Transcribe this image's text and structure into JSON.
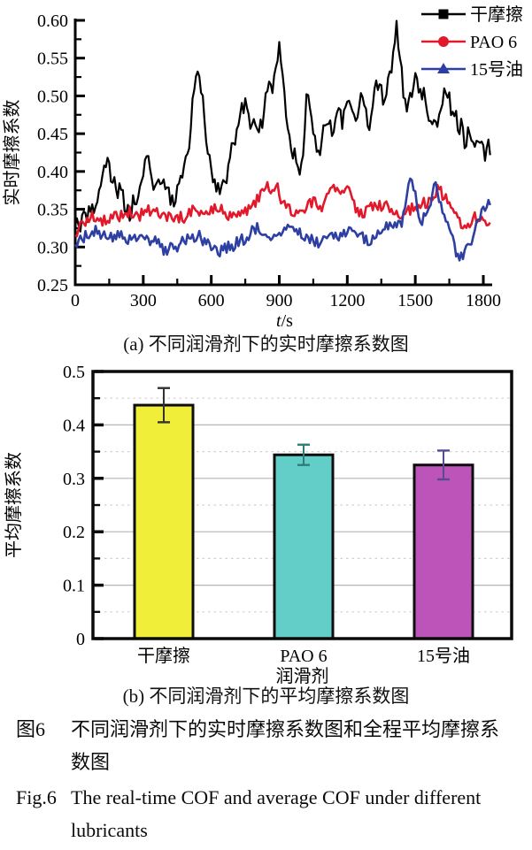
{
  "figure": {
    "caption_zh_label": "图6",
    "caption_zh_text": "不同润滑剂下的实时摩擦系数图和全程平均摩擦系数图",
    "caption_en_label": "Fig.6",
    "caption_en_text": "The real-time COF and average COF under different lubricants"
  },
  "chart_data": [
    {
      "type": "line",
      "title": "(a) 不同润滑剂下的实时摩擦系数图",
      "xlabel": "t/s",
      "ylabel": "实时摩擦系数",
      "xlim": [
        0,
        1800
      ],
      "xmax_data": 1830,
      "ylim": [
        0.25,
        0.6
      ],
      "xticks_major": [
        0,
        300,
        600,
        900,
        1200,
        1500,
        1800
      ],
      "xtick_minor_step": 150,
      "yticks_major": [
        0.25,
        0.3,
        0.35,
        0.4,
        0.45,
        0.5,
        0.55,
        0.6
      ],
      "ytick_labels": [
        "0.25",
        "0.30",
        "0.35",
        "0.40",
        "0.45",
        "0.50",
        "0.55",
        "0.60"
      ],
      "ytick_minor_step": 0.025,
      "grid": false,
      "legend_position": "top-right",
      "axis_color": "#000000",
      "series": [
        {
          "name": "干摩擦",
          "color": "#000000",
          "marker": "square",
          "noise": 0.013,
          "seed": 7,
          "keypoints": [
            [
              0,
              0.335
            ],
            [
              20,
              0.322
            ],
            [
              45,
              0.34
            ],
            [
              70,
              0.345
            ],
            [
              95,
              0.36
            ],
            [
              120,
              0.4
            ],
            [
              140,
              0.415
            ],
            [
              160,
              0.39
            ],
            [
              185,
              0.37
            ],
            [
              200,
              0.385
            ],
            [
              220,
              0.355
            ],
            [
              240,
              0.345
            ],
            [
              260,
              0.36
            ],
            [
              285,
              0.375
            ],
            [
              300,
              0.4
            ],
            [
              320,
              0.415
            ],
            [
              340,
              0.385
            ],
            [
              360,
              0.38
            ],
            [
              380,
              0.395
            ],
            [
              400,
              0.375
            ],
            [
              420,
              0.365
            ],
            [
              440,
              0.36
            ],
            [
              460,
              0.385
            ],
            [
              480,
              0.4
            ],
            [
              500,
              0.43
            ],
            [
              520,
              0.5
            ],
            [
              540,
              0.545
            ],
            [
              555,
              0.515
            ],
            [
              570,
              0.46
            ],
            [
              585,
              0.43
            ],
            [
              600,
              0.4
            ],
            [
              620,
              0.385
            ],
            [
              640,
              0.38
            ],
            [
              660,
              0.375
            ],
            [
              680,
              0.41
            ],
            [
              700,
              0.44
            ],
            [
              720,
              0.46
            ],
            [
              740,
              0.485
            ],
            [
              755,
              0.49
            ],
            [
              770,
              0.46
            ],
            [
              785,
              0.475
            ],
            [
              800,
              0.45
            ],
            [
              815,
              0.46
            ],
            [
              830,
              0.47
            ],
            [
              845,
              0.52
            ],
            [
              860,
              0.5
            ],
            [
              875,
              0.52
            ],
            [
              890,
              0.55
            ],
            [
              900,
              0.56
            ],
            [
              915,
              0.53
            ],
            [
              930,
              0.47
            ],
            [
              945,
              0.44
            ],
            [
              960,
              0.43
            ],
            [
              975,
              0.41
            ],
            [
              990,
              0.4
            ],
            [
              1005,
              0.43
            ],
            [
              1020,
              0.5
            ],
            [
              1035,
              0.49
            ],
            [
              1050,
              0.45
            ],
            [
              1065,
              0.43
            ],
            [
              1080,
              0.42
            ],
            [
              1100,
              0.46
            ],
            [
              1120,
              0.47
            ],
            [
              1140,
              0.45
            ],
            [
              1160,
              0.48
            ],
            [
              1180,
              0.465
            ],
            [
              1200,
              0.5
            ],
            [
              1220,
              0.48
            ],
            [
              1240,
              0.46
            ],
            [
              1260,
              0.5
            ],
            [
              1280,
              0.475
            ],
            [
              1300,
              0.46
            ],
            [
              1320,
              0.5
            ],
            [
              1340,
              0.52
            ],
            [
              1360,
              0.495
            ],
            [
              1380,
              0.52
            ],
            [
              1400,
              0.55
            ],
            [
              1415,
              0.595
            ],
            [
              1430,
              0.55
            ],
            [
              1445,
              0.515
            ],
            [
              1460,
              0.47
            ],
            [
              1475,
              0.49
            ],
            [
              1490,
              0.51
            ],
            [
              1505,
              0.525
            ],
            [
              1520,
              0.5
            ],
            [
              1535,
              0.51
            ],
            [
              1550,
              0.49
            ],
            [
              1565,
              0.47
            ],
            [
              1580,
              0.455
            ],
            [
              1600,
              0.47
            ],
            [
              1620,
              0.5
            ],
            [
              1640,
              0.51
            ],
            [
              1655,
              0.49
            ],
            [
              1670,
              0.475
            ],
            [
              1685,
              0.465
            ],
            [
              1700,
              0.46
            ],
            [
              1720,
              0.44
            ],
            [
              1740,
              0.455
            ],
            [
              1760,
              0.44
            ],
            [
              1780,
              0.432
            ],
            [
              1800,
              0.425
            ],
            [
              1830,
              0.432
            ]
          ]
        },
        {
          "name": "PAO 6",
          "color": "#e2182b",
          "marker": "circle",
          "noise": 0.008,
          "seed": 23,
          "keypoints": [
            [
              0,
              0.318
            ],
            [
              40,
              0.333
            ],
            [
              80,
              0.34
            ],
            [
              120,
              0.335
            ],
            [
              160,
              0.34
            ],
            [
              200,
              0.342
            ],
            [
              240,
              0.347
            ],
            [
              280,
              0.34
            ],
            [
              320,
              0.35
            ],
            [
              360,
              0.345
            ],
            [
              400,
              0.34
            ],
            [
              440,
              0.337
            ],
            [
              480,
              0.34
            ],
            [
              520,
              0.35
            ],
            [
              560,
              0.345
            ],
            [
              600,
              0.348
            ],
            [
              640,
              0.35
            ],
            [
              680,
              0.34
            ],
            [
              720,
              0.345
            ],
            [
              760,
              0.35
            ],
            [
              800,
              0.36
            ],
            [
              830,
              0.375
            ],
            [
              850,
              0.385
            ],
            [
              870,
              0.368
            ],
            [
              890,
              0.39
            ],
            [
              910,
              0.36
            ],
            [
              940,
              0.35
            ],
            [
              980,
              0.345
            ],
            [
              1020,
              0.355
            ],
            [
              1060,
              0.36
            ],
            [
              1090,
              0.35
            ],
            [
              1120,
              0.372
            ],
            [
              1150,
              0.38
            ],
            [
              1180,
              0.374
            ],
            [
              1210,
              0.372
            ],
            [
              1240,
              0.35
            ],
            [
              1280,
              0.345
            ],
            [
              1320,
              0.358
            ],
            [
              1360,
              0.355
            ],
            [
              1400,
              0.348
            ],
            [
              1440,
              0.345
            ],
            [
              1480,
              0.35
            ],
            [
              1520,
              0.355
            ],
            [
              1560,
              0.36
            ],
            [
              1600,
              0.378
            ],
            [
              1630,
              0.365
            ],
            [
              1660,
              0.35
            ],
            [
              1690,
              0.338
            ],
            [
              1715,
              0.32
            ],
            [
              1740,
              0.33
            ],
            [
              1765,
              0.34
            ],
            [
              1790,
              0.337
            ],
            [
              1810,
              0.33
            ],
            [
              1830,
              0.337
            ]
          ]
        },
        {
          "name": "15号油",
          "color": "#2e3fa3",
          "marker": "triangle",
          "noise": 0.008,
          "seed": 41,
          "keypoints": [
            [
              0,
              0.298
            ],
            [
              30,
              0.31
            ],
            [
              60,
              0.318
            ],
            [
              90,
              0.322
            ],
            [
              120,
              0.315
            ],
            [
              150,
              0.318
            ],
            [
              180,
              0.312
            ],
            [
              210,
              0.318
            ],
            [
              240,
              0.308
            ],
            [
              270,
              0.312
            ],
            [
              300,
              0.315
            ],
            [
              330,
              0.31
            ],
            [
              360,
              0.308
            ],
            [
              390,
              0.295
            ],
            [
              420,
              0.298
            ],
            [
              450,
              0.302
            ],
            [
              480,
              0.308
            ],
            [
              510,
              0.312
            ],
            [
              540,
              0.315
            ],
            [
              570,
              0.308
            ],
            [
              600,
              0.3
            ],
            [
              630,
              0.295
            ],
            [
              660,
              0.298
            ],
            [
              690,
              0.3
            ],
            [
              720,
              0.308
            ],
            [
              750,
              0.31
            ],
            [
              780,
              0.322
            ],
            [
              810,
              0.326
            ],
            [
              840,
              0.318
            ],
            [
              870,
              0.315
            ],
            [
              900,
              0.312
            ],
            [
              930,
              0.328
            ],
            [
              960,
              0.322
            ],
            [
              990,
              0.318
            ],
            [
              1020,
              0.312
            ],
            [
              1050,
              0.308
            ],
            [
              1080,
              0.305
            ],
            [
              1110,
              0.31
            ],
            [
              1140,
              0.312
            ],
            [
              1170,
              0.315
            ],
            [
              1200,
              0.318
            ],
            [
              1230,
              0.322
            ],
            [
              1260,
              0.315
            ],
            [
              1290,
              0.308
            ],
            [
              1320,
              0.315
            ],
            [
              1350,
              0.318
            ],
            [
              1380,
              0.328
            ],
            [
              1410,
              0.33
            ],
            [
              1440,
              0.332
            ],
            [
              1460,
              0.36
            ],
            [
              1475,
              0.4
            ],
            [
              1490,
              0.388
            ],
            [
              1505,
              0.355
            ],
            [
              1520,
              0.335
            ],
            [
              1540,
              0.338
            ],
            [
              1560,
              0.345
            ],
            [
              1575,
              0.378
            ],
            [
              1590,
              0.39
            ],
            [
              1605,
              0.362
            ],
            [
              1620,
              0.345
            ],
            [
              1640,
              0.335
            ],
            [
              1660,
              0.312
            ],
            [
              1680,
              0.292
            ],
            [
              1695,
              0.286
            ],
            [
              1710,
              0.29
            ],
            [
              1730,
              0.3
            ],
            [
              1750,
              0.312
            ],
            [
              1770,
              0.33
            ],
            [
              1790,
              0.345
            ],
            [
              1810,
              0.355
            ],
            [
              1830,
              0.36
            ]
          ]
        }
      ]
    },
    {
      "type": "bar",
      "title": "(b) 不同润滑剂下的平均摩擦系数图",
      "xlabel": "润滑剂",
      "ylabel": "平均摩擦系数",
      "ylim": [
        0,
        0.5
      ],
      "categories": [
        "干摩擦",
        "PAO 6",
        "15号油"
      ],
      "values": [
        0.437,
        0.344,
        0.325
      ],
      "errors": [
        0.032,
        0.019,
        0.027
      ],
      "bar_colors": [
        "#f0ee39",
        "#63cdc7",
        "#bd54ba"
      ],
      "error_colors": [
        "#333333",
        "#2e7d78",
        "#5a4a96"
      ],
      "bar_border_color": "#0d0d0d",
      "yticks_major": [
        0,
        0.1,
        0.2,
        0.3,
        0.4,
        0.5
      ],
      "ytick_labels": [
        "0",
        "0.1",
        "0.2",
        "0.3",
        "0.4",
        "0.5"
      ],
      "ytick_minor_step": 0.05,
      "grid_solid_color": "#b5b5b5",
      "grid_dashed_color": "#cfcfcf",
      "grid": true,
      "legend_position": "none"
    }
  ]
}
